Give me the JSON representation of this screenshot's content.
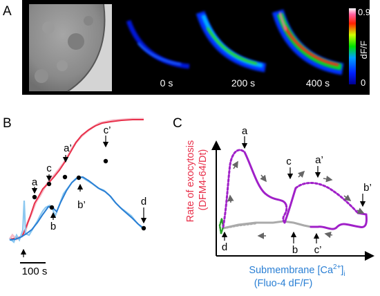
{
  "panels": {
    "a": {
      "letter": "A",
      "time_labels": [
        "0 s",
        "200 s",
        "400 s"
      ],
      "colorbar": {
        "max": "0.9",
        "min": "0",
        "label": "dF/F"
      }
    },
    "b": {
      "letter": "B",
      "points": [
        "a",
        "c",
        "a’",
        "c’",
        "b",
        "b’",
        "d"
      ],
      "scale_label": "100 s",
      "colors": {
        "exocytosis": "#e8304a",
        "calcium": "#2a7fd4"
      }
    },
    "c": {
      "letter": "C",
      "y_label_line1": "Rate of  exocytosis",
      "y_label_line2": "(DFM4-64/Dt)",
      "x_label_prefix": "Submembrane [Ca",
      "x_label_sup": "2+",
      "x_label_close": "]",
      "x_label_sub": "i",
      "x_label_line2": "(Fluo-4 dF/F)",
      "points": [
        "a",
        "c",
        "a’",
        "b’",
        "d",
        "b",
        "c’"
      ]
    }
  }
}
